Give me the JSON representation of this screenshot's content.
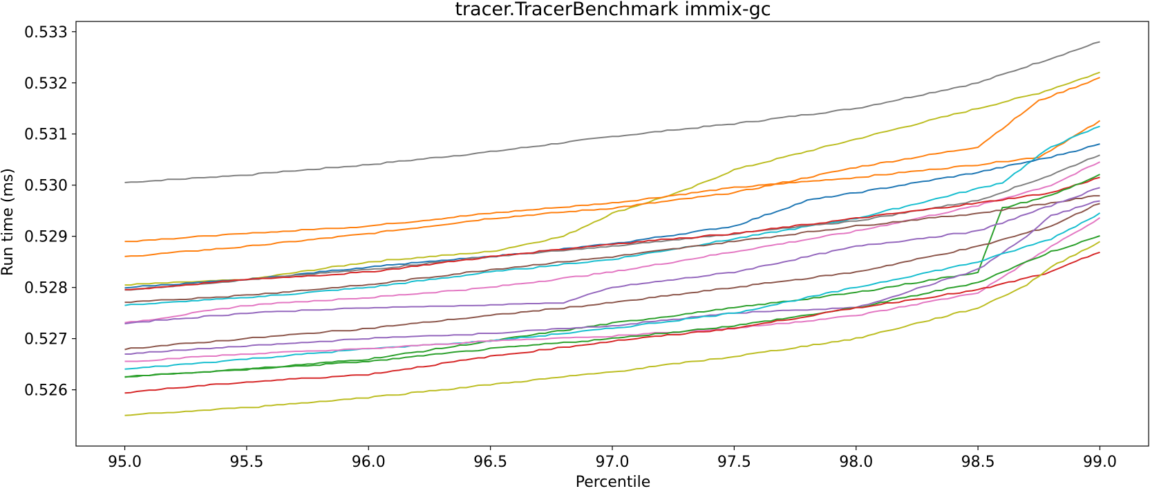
{
  "chart_data": {
    "type": "line",
    "title": "tracer.TracerBenchmark immix-gc",
    "xlabel": "Percentile",
    "ylabel": "Run time (ms)",
    "xlim": [
      94.8,
      99.2
    ],
    "ylim": [
      0.5249,
      0.5332
    ],
    "xticks": [
      "95.0",
      "95.5",
      "96.0",
      "96.5",
      "97.0",
      "97.5",
      "98.0",
      "98.5",
      "99.0"
    ],
    "yticks": [
      "0.526",
      "0.527",
      "0.528",
      "0.529",
      "0.530",
      "0.531",
      "0.532",
      "0.533"
    ],
    "grid": false,
    "legend": false,
    "series": [
      {
        "color": "#7f7f7f",
        "points": [
          [
            95.0,
            0.53005
          ],
          [
            95.5,
            0.5302
          ],
          [
            96.0,
            0.5304
          ],
          [
            96.5,
            0.53065
          ],
          [
            97.0,
            0.53095
          ],
          [
            97.5,
            0.5312
          ],
          [
            98.0,
            0.5315
          ],
          [
            98.5,
            0.532
          ],
          [
            98.75,
            0.5324
          ],
          [
            99.0,
            0.5328
          ]
        ]
      },
      {
        "color": "#bcbd22",
        "points": [
          [
            95.0,
            0.52805
          ],
          [
            95.5,
            0.52815
          ],
          [
            96.0,
            0.5285
          ],
          [
            96.5,
            0.5287
          ],
          [
            96.8,
            0.529
          ],
          [
            97.0,
            0.52945
          ],
          [
            97.3,
            0.5299
          ],
          [
            97.5,
            0.5303
          ],
          [
            98.0,
            0.5309
          ],
          [
            98.5,
            0.5315
          ],
          [
            98.75,
            0.5318
          ],
          [
            99.0,
            0.5322
          ]
        ]
      },
      {
        "color": "#ff7f0e",
        "points": [
          [
            95.0,
            0.5289
          ],
          [
            95.5,
            0.52905
          ],
          [
            96.0,
            0.5292
          ],
          [
            96.5,
            0.52945
          ],
          [
            97.0,
            0.52965
          ],
          [
            97.5,
            0.52995
          ],
          [
            98.0,
            0.53015
          ],
          [
            98.5,
            0.5304
          ],
          [
            98.75,
            0.53055
          ],
          [
            99.0,
            0.53125
          ]
        ]
      },
      {
        "color": "#ff7f0e",
        "points": [
          [
            95.0,
            0.5286
          ],
          [
            95.5,
            0.5288
          ],
          [
            96.0,
            0.52905
          ],
          [
            96.5,
            0.52935
          ],
          [
            97.0,
            0.52955
          ],
          [
            97.5,
            0.52985
          ],
          [
            98.0,
            0.53035
          ],
          [
            98.5,
            0.53075
          ],
          [
            98.75,
            0.53165
          ],
          [
            99.0,
            0.5321
          ]
        ]
      },
      {
        "color": "#17becf",
        "points": [
          [
            95.0,
            0.52765
          ],
          [
            95.5,
            0.5278
          ],
          [
            96.0,
            0.528
          ],
          [
            96.5,
            0.5283
          ],
          [
            97.0,
            0.52855
          ],
          [
            97.5,
            0.52895
          ],
          [
            98.0,
            0.52935
          ],
          [
            98.3,
            0.5297
          ],
          [
            98.6,
            0.53005
          ],
          [
            98.8,
            0.53075
          ],
          [
            99.0,
            0.53115
          ]
        ]
      },
      {
        "color": "#1f77b4",
        "points": [
          [
            95.0,
            0.528
          ],
          [
            95.5,
            0.52815
          ],
          [
            96.0,
            0.5284
          ],
          [
            96.5,
            0.5286
          ],
          [
            97.0,
            0.52885
          ],
          [
            97.5,
            0.5292
          ],
          [
            97.8,
            0.5297
          ],
          [
            98.0,
            0.52985
          ],
          [
            98.5,
            0.53025
          ],
          [
            98.8,
            0.53055
          ],
          [
            99.0,
            0.5308
          ]
        ]
      },
      {
        "color": "#7f7f7f",
        "points": [
          [
            95.0,
            0.52795
          ],
          [
            95.5,
            0.52815
          ],
          [
            96.0,
            0.52835
          ],
          [
            96.5,
            0.5286
          ],
          [
            97.0,
            0.5288
          ],
          [
            97.5,
            0.52905
          ],
          [
            98.0,
            0.5293
          ],
          [
            98.5,
            0.5297
          ],
          [
            98.8,
            0.5302
          ],
          [
            99.0,
            0.5306
          ]
        ]
      },
      {
        "color": "#e377c2",
        "points": [
          [
            95.0,
            0.5273
          ],
          [
            95.5,
            0.52765
          ],
          [
            96.0,
            0.5278
          ],
          [
            96.5,
            0.528
          ],
          [
            97.0,
            0.5283
          ],
          [
            97.5,
            0.5287
          ],
          [
            98.0,
            0.5291
          ],
          [
            98.5,
            0.5296
          ],
          [
            98.8,
            0.53
          ],
          [
            99.0,
            0.53045
          ]
        ]
      },
      {
        "color": "#d62728",
        "points": [
          [
            95.0,
            0.52795
          ],
          [
            95.5,
            0.52815
          ],
          [
            96.0,
            0.5283
          ],
          [
            96.5,
            0.5286
          ],
          [
            97.0,
            0.52885
          ],
          [
            97.5,
            0.52905
          ],
          [
            98.0,
            0.52935
          ],
          [
            98.5,
            0.52965
          ],
          [
            98.8,
            0.52985
          ],
          [
            99.0,
            0.53015
          ]
        ]
      },
      {
        "color": "#2ca02c",
        "points": [
          [
            95.0,
            0.52625
          ],
          [
            95.5,
            0.5264
          ],
          [
            96.0,
            0.5266
          ],
          [
            96.5,
            0.52695
          ],
          [
            97.0,
            0.5273
          ],
          [
            97.5,
            0.5276
          ],
          [
            98.0,
            0.5279
          ],
          [
            98.5,
            0.5283
          ],
          [
            98.6,
            0.52955
          ],
          [
            98.8,
            0.5298
          ],
          [
            99.0,
            0.5302
          ]
        ]
      },
      {
        "color": "#8c564b",
        "points": [
          [
            95.0,
            0.5277
          ],
          [
            95.5,
            0.52785
          ],
          [
            96.0,
            0.52805
          ],
          [
            96.5,
            0.52835
          ],
          [
            97.0,
            0.5286
          ],
          [
            97.5,
            0.5289
          ],
          [
            98.0,
            0.5292
          ],
          [
            98.5,
            0.52945
          ],
          [
            98.8,
            0.52965
          ],
          [
            99.0,
            0.5298
          ]
        ]
      },
      {
        "color": "#9467bd",
        "points": [
          [
            95.0,
            0.5273
          ],
          [
            95.5,
            0.5275
          ],
          [
            96.0,
            0.5276
          ],
          [
            96.5,
            0.52765
          ],
          [
            96.8,
            0.5277
          ],
          [
            97.0,
            0.528
          ],
          [
            97.5,
            0.5283
          ],
          [
            98.0,
            0.5288
          ],
          [
            98.5,
            0.5291
          ],
          [
            98.8,
            0.5296
          ],
          [
            99.0,
            0.52995
          ]
        ]
      },
      {
        "color": "#8c564b",
        "points": [
          [
            95.0,
            0.5268
          ],
          [
            95.5,
            0.527
          ],
          [
            96.0,
            0.5272
          ],
          [
            96.5,
            0.52745
          ],
          [
            97.0,
            0.5277
          ],
          [
            97.5,
            0.528
          ],
          [
            98.0,
            0.5283
          ],
          [
            98.5,
            0.5288
          ],
          [
            98.8,
            0.5292
          ],
          [
            99.0,
            0.52965
          ]
        ]
      },
      {
        "color": "#9467bd",
        "points": [
          [
            95.0,
            0.5267
          ],
          [
            95.5,
            0.52685
          ],
          [
            96.0,
            0.527
          ],
          [
            96.5,
            0.5271
          ],
          [
            97.0,
            0.52725
          ],
          [
            97.5,
            0.5275
          ],
          [
            98.0,
            0.5276
          ],
          [
            98.5,
            0.52835
          ],
          [
            98.7,
            0.529
          ],
          [
            98.8,
            0.5294
          ],
          [
            99.0,
            0.5297
          ]
        ]
      },
      {
        "color": "#17becf",
        "points": [
          [
            95.0,
            0.5264
          ],
          [
            95.5,
            0.5266
          ],
          [
            96.0,
            0.5268
          ],
          [
            96.5,
            0.52695
          ],
          [
            97.0,
            0.5272
          ],
          [
            97.5,
            0.5275
          ],
          [
            98.0,
            0.528
          ],
          [
            98.5,
            0.5285
          ],
          [
            98.8,
            0.52895
          ],
          [
            99.0,
            0.52945
          ]
        ]
      },
      {
        "color": "#e377c2",
        "points": [
          [
            95.0,
            0.52655
          ],
          [
            95.5,
            0.5267
          ],
          [
            96.0,
            0.5268
          ],
          [
            96.5,
            0.52695
          ],
          [
            97.0,
            0.52705
          ],
          [
            97.5,
            0.5272
          ],
          [
            98.0,
            0.52745
          ],
          [
            98.5,
            0.5279
          ],
          [
            98.8,
            0.5288
          ],
          [
            99.0,
            0.52935
          ]
        ]
      },
      {
        "color": "#2ca02c",
        "points": [
          [
            95.0,
            0.52625
          ],
          [
            95.5,
            0.5264
          ],
          [
            96.0,
            0.52655
          ],
          [
            96.5,
            0.5268
          ],
          [
            97.0,
            0.527
          ],
          [
            97.5,
            0.52725
          ],
          [
            98.0,
            0.5276
          ],
          [
            98.5,
            0.5281
          ],
          [
            98.8,
            0.5287
          ],
          [
            99.0,
            0.529
          ]
        ]
      },
      {
        "color": "#d62728",
        "points": [
          [
            95.0,
            0.52595
          ],
          [
            95.5,
            0.52615
          ],
          [
            96.0,
            0.5263
          ],
          [
            96.5,
            0.52665
          ],
          [
            97.0,
            0.52695
          ],
          [
            97.5,
            0.5272
          ],
          [
            98.0,
            0.5276
          ],
          [
            98.5,
            0.52795
          ],
          [
            98.8,
            0.5283
          ],
          [
            99.0,
            0.5287
          ]
        ]
      },
      {
        "color": "#bcbd22",
        "points": [
          [
            95.0,
            0.5255
          ],
          [
            95.5,
            0.52565
          ],
          [
            96.0,
            0.52585
          ],
          [
            96.5,
            0.5261
          ],
          [
            97.0,
            0.52635
          ],
          [
            97.5,
            0.52665
          ],
          [
            98.0,
            0.527
          ],
          [
            98.5,
            0.5276
          ],
          [
            98.7,
            0.52805
          ],
          [
            98.8,
            0.5284
          ],
          [
            99.0,
            0.5289
          ]
        ]
      }
    ]
  }
}
